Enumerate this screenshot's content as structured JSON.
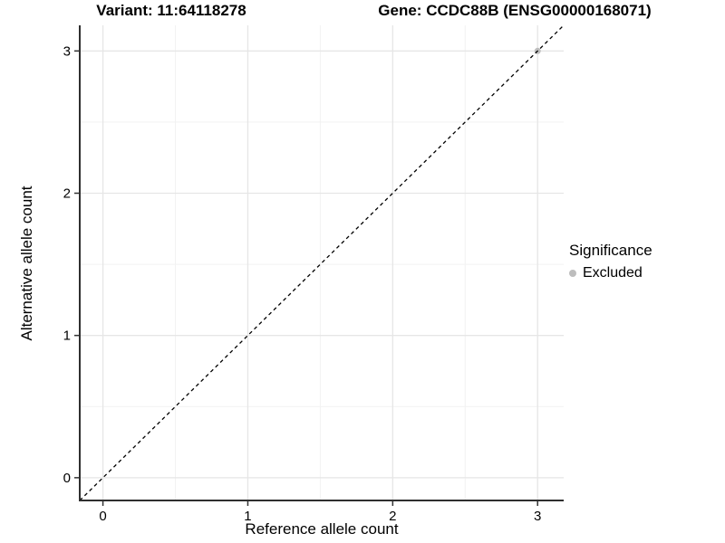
{
  "chart_data": {
    "type": "scatter",
    "title_left": "Variant: 11:64118278",
    "title_right": "Gene: CCDC88B (ENSG00000168071)",
    "xlabel": "Reference allele count",
    "ylabel": "Alternative allele count",
    "xlim": [
      -0.16,
      3.18
    ],
    "ylim": [
      -0.16,
      3.18
    ],
    "xticks": [
      0,
      1,
      2,
      3
    ],
    "yticks": [
      0,
      1,
      2,
      3
    ],
    "grid": "major+minor",
    "minor_grid_step": 0.5,
    "colors": {
      "grid_major": "#e6e6e6",
      "grid_minor": "#f2f2f2",
      "axis_line": "#2f2f2f",
      "tick_mark": "#333333",
      "tick_text": "#000000",
      "background": "#ffffff"
    },
    "reference_line": {
      "type": "identity",
      "style": "dashed",
      "color": "#000000",
      "from": [
        -0.16,
        -0.16
      ],
      "to": [
        3.18,
        3.18
      ]
    },
    "points": [
      {
        "x": 3,
        "y": 3,
        "significance": "Excluded",
        "color": "#bdbdbd",
        "radius": 3.5
      }
    ],
    "legend": {
      "title": "Significance",
      "position": "right",
      "items": [
        {
          "label": "Excluded",
          "color": "#bdbdbd",
          "marker": "circle"
        }
      ]
    }
  }
}
